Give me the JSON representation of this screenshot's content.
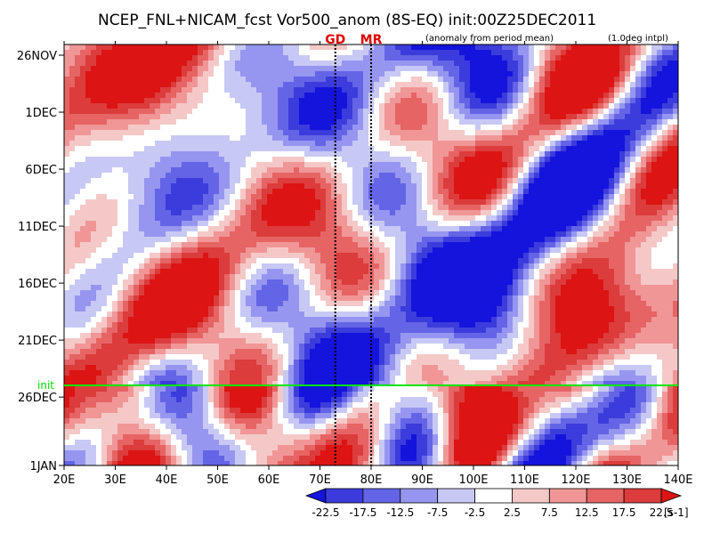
{
  "chart_data": {
    "type": "heatmap",
    "title": "NCEP_FNL+NICAM_fcst Vor500_anom (8S-EQ) init:00Z25DEC2011",
    "subtitle_left": "(anomaly from period mean)",
    "subtitle_right": "(1.0deg intpl)",
    "x_ticks": [
      "20E",
      "30E",
      "40E",
      "50E",
      "60E",
      "70E",
      "80E",
      "90E",
      "100E",
      "110E",
      "120E",
      "130E",
      "140E"
    ],
    "xlim": [
      20,
      140
    ],
    "y_ticks": [
      "26NOV",
      "1DEC",
      "6DEC",
      "11DEC",
      "16DEC",
      "21DEC",
      "26DEC",
      "1JAN"
    ],
    "y_range": [
      "26NOV2011",
      "1JAN2012"
    ],
    "markers": [
      {
        "label": "GD",
        "lon": 73
      },
      {
        "label": "MR",
        "lon": 80
      }
    ],
    "init_label": "init",
    "init_date": "25DEC2011",
    "colorbar": {
      "labels": [
        "-22.5",
        "-17.5",
        "-12.5",
        "-7.5",
        "-2.5",
        "2.5",
        "7.5",
        "12.5",
        "17.5",
        "22.5"
      ],
      "unit": "[s-1]",
      "colors": [
        "#1414dc",
        "#3c3cdc",
        "#6464e6",
        "#9696f0",
        "#c8c8f5",
        "#ffffff",
        "#f5c8c8",
        "#f09696",
        "#e66464",
        "#dc3c3c",
        "#dc1414"
      ]
    },
    "colors": {
      "init_line": "#00e600",
      "marker": "#e00000"
    }
  }
}
